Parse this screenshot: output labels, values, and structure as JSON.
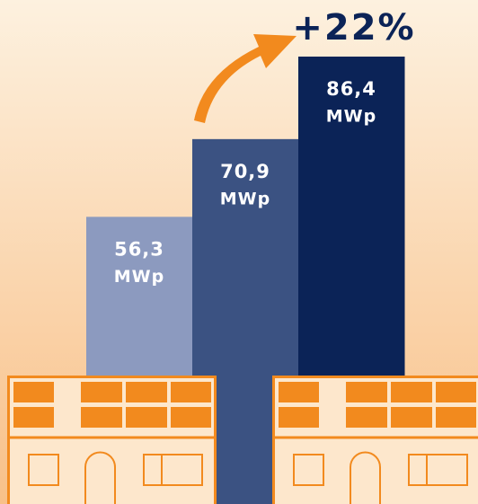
{
  "chart_data": {
    "type": "bar",
    "annotation": "+22%",
    "unit": "MWp",
    "categories": [
      null,
      null,
      null
    ],
    "values": [
      56.3,
      70.9,
      86.4
    ],
    "value_labels": [
      "56,3",
      "70,9",
      "86,4"
    ],
    "colors": [
      "#8c9abf",
      "#3b5282",
      "#0b2357"
    ],
    "label_color": "#ffffff",
    "annotation_color": "#0b2357",
    "accent_color": "#f28a1e"
  }
}
